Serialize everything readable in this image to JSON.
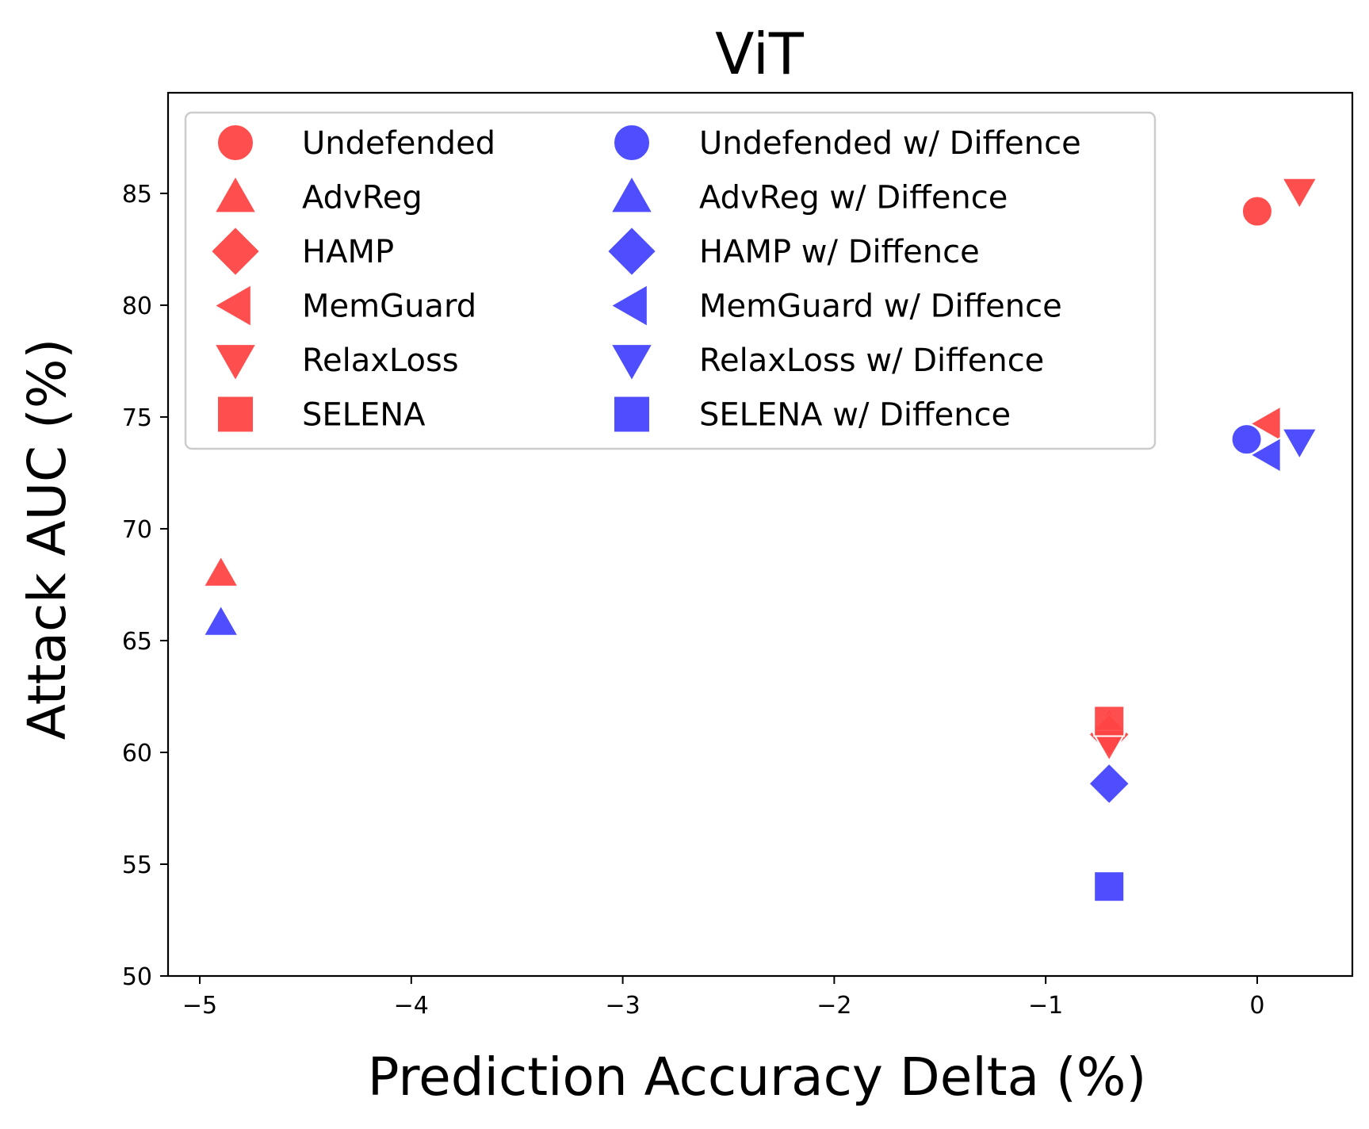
{
  "chart_data": {
    "type": "scatter",
    "title": "ViT",
    "xlabel": "Prediction Accuracy Delta (%)",
    "ylabel": "Attack AUC (%)",
    "xlim": [
      -5.15,
      0.45
    ],
    "ylim": [
      50,
      89.5
    ],
    "xticks": [
      -5,
      -4,
      -3,
      -2,
      -1,
      0
    ],
    "xtick_labels": [
      "−5",
      "−4",
      "−3",
      "−2",
      "−1",
      "0"
    ],
    "yticks": [
      50,
      55,
      60,
      65,
      70,
      75,
      80,
      85
    ],
    "ytick_labels": [
      "50",
      "55",
      "60",
      "65",
      "70",
      "75",
      "80",
      "85"
    ],
    "grid": false,
    "legend_position": "top-left",
    "legend_columns": 2,
    "colors": {
      "undefended": "#ff4444",
      "diffence": "#4444ff"
    },
    "series": [
      {
        "name": "Undefended",
        "marker": "circle",
        "color": "#ff4444",
        "points": [
          [
            0.0,
            84.2
          ]
        ]
      },
      {
        "name": "AdvReg",
        "marker": "triangle-up",
        "color": "#ff4444",
        "points": [
          [
            -4.9,
            68.0
          ],
          [
            -0.7,
            61.2
          ]
        ]
      },
      {
        "name": "HAMP",
        "marker": "diamond",
        "color": "#ff4444",
        "points": [
          [
            -0.7,
            60.8
          ]
        ]
      },
      {
        "name": "MemGuard",
        "marker": "triangle-left",
        "color": "#ff4444",
        "points": [
          [
            0.05,
            74.7
          ]
        ]
      },
      {
        "name": "RelaxLoss",
        "marker": "triangle-down",
        "color": "#ff4444",
        "points": [
          [
            0.2,
            85.1
          ],
          [
            -0.7,
            60.4
          ]
        ]
      },
      {
        "name": "SELENA",
        "marker": "square",
        "color": "#ff4444",
        "points": [
          [
            -0.7,
            61.4
          ]
        ]
      },
      {
        "name": "Undefended w/ Diffence",
        "marker": "circle",
        "color": "#4444ff",
        "points": [
          [
            -0.05,
            74.0
          ]
        ]
      },
      {
        "name": "AdvReg w/ Diffence",
        "marker": "triangle-up",
        "color": "#4444ff",
        "points": [
          [
            -4.9,
            65.8
          ]
        ]
      },
      {
        "name": "HAMP w/ Diffence",
        "marker": "diamond",
        "color": "#4444ff",
        "points": [
          [
            -0.7,
            58.6
          ]
        ]
      },
      {
        "name": "MemGuard w/ Diffence",
        "marker": "triangle-left",
        "color": "#4444ff",
        "points": [
          [
            0.05,
            73.3
          ]
        ]
      },
      {
        "name": "RelaxLoss w/ Diffence",
        "marker": "triangle-down",
        "color": "#4444ff",
        "points": [
          [
            0.2,
            73.9
          ]
        ]
      },
      {
        "name": "SELENA w/ Diffence",
        "marker": "square",
        "color": "#4444ff",
        "points": [
          [
            -0.7,
            54.0
          ]
        ]
      }
    ]
  }
}
